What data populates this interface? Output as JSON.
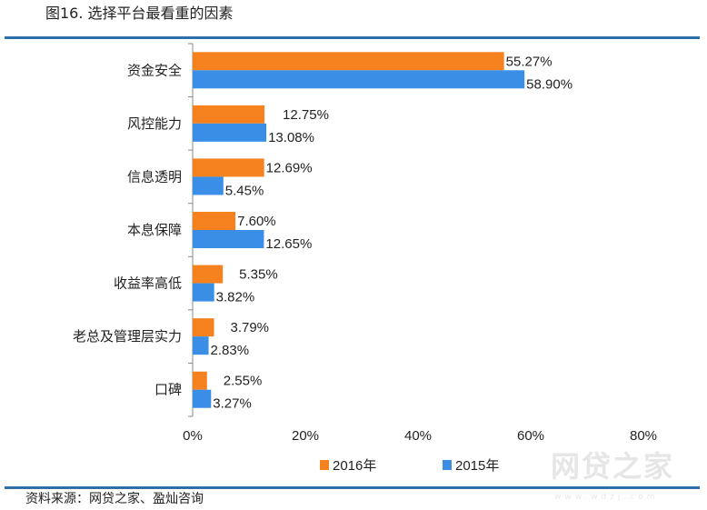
{
  "title": "图16. 选择平台最看重的因素",
  "source": "资料来源：网贷之家、盈灿咨询",
  "watermark": {
    "text": "网贷之家",
    "url": "www.wdzj.com"
  },
  "chart_data": {
    "type": "bar",
    "orientation": "horizontal",
    "categories": [
      "资金安全",
      "风控能力",
      "信息透明",
      "本息保障",
      "收益率高低",
      "老总及管理层实力",
      "口碑"
    ],
    "series": [
      {
        "name": "2016年",
        "color": "#f5821f",
        "values": [
          55.27,
          12.75,
          12.69,
          7.6,
          5.35,
          3.79,
          2.55
        ],
        "labels": [
          "55.27%",
          "12.75%",
          "12.69%",
          "7.60%",
          "5.35%",
          "3.79%",
          "2.55%"
        ]
      },
      {
        "name": "2015年",
        "color": "#3a8ee6",
        "values": [
          58.9,
          13.08,
          5.45,
          12.65,
          3.82,
          2.83,
          3.27
        ],
        "labels": [
          "58.90%",
          "13.08%",
          "5.45%",
          "12.65%",
          "3.82%",
          "2.83%",
          "3.27%"
        ]
      }
    ],
    "xlim": [
      0,
      80
    ],
    "xticks": [
      "0%",
      "20%",
      "40%",
      "60%",
      "80%"
    ],
    "grid": false,
    "legend": "bottom"
  }
}
